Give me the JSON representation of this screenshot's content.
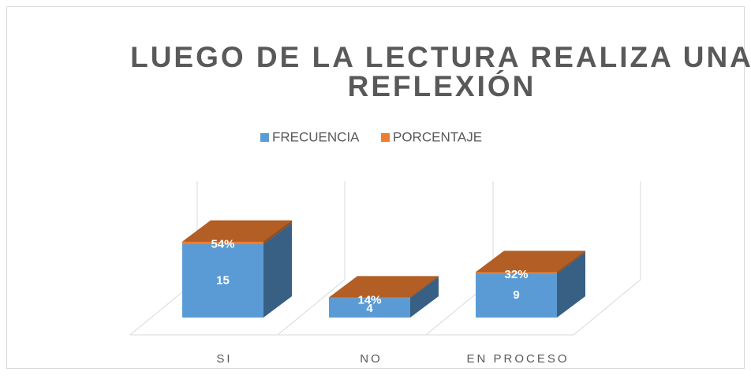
{
  "chart_data": {
    "type": "bar3d_stacked",
    "title": "LUEGO DE LA LECTURA REALIZA UNA REFLEXIÓN",
    "categories": [
      "SI",
      "NO",
      "EN PROCESO"
    ],
    "series": [
      {
        "name": "FRECUENCIA",
        "color": "#5b9bd5",
        "values": [
          15,
          4,
          9
        ]
      },
      {
        "name": "PORCENTAJE",
        "color": "#ed7d31",
        "values": [
          0.54,
          0.14,
          0.32
        ],
        "value_labels": [
          "54%",
          "14%",
          "32%"
        ]
      }
    ],
    "legend": "top"
  }
}
